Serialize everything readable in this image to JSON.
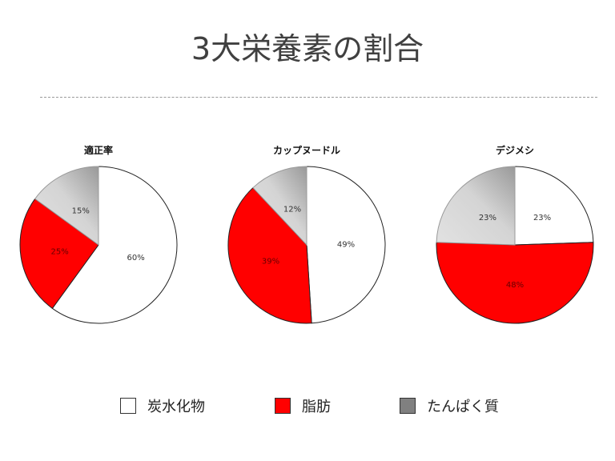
{
  "title": "3大栄養素の割合",
  "chart_data": [
    {
      "type": "pie",
      "title": "適正率",
      "slices": [
        {
          "category": "炭水化物",
          "value": 60,
          "label": "60%"
        },
        {
          "category": "脂肪",
          "value": 25,
          "label": "25%"
        },
        {
          "category": "たんぱく質",
          "value": 15,
          "label": "15%"
        }
      ]
    },
    {
      "type": "pie",
      "title": "カップヌードル",
      "slices": [
        {
          "category": "炭水化物",
          "value": 49,
          "label": "49%"
        },
        {
          "category": "脂肪",
          "value": 39,
          "label": "39%"
        },
        {
          "category": "たんぱく質",
          "value": 12,
          "label": "12%"
        }
      ]
    },
    {
      "type": "pie",
      "title": "デジメシ",
      "slices": [
        {
          "category": "炭水化物",
          "value": 23,
          "label": "23%"
        },
        {
          "category": "脂肪",
          "value": 48,
          "label": "48%"
        },
        {
          "category": "たんぱく質",
          "value": 23,
          "label": "23%"
        }
      ]
    }
  ],
  "legend": {
    "placement": "bottom",
    "items": [
      {
        "label": "炭水化物",
        "color": "#ffffff"
      },
      {
        "label": "脂肪",
        "color": "#ff0000"
      },
      {
        "label": "たんぱく質",
        "color": "#808080"
      }
    ]
  }
}
